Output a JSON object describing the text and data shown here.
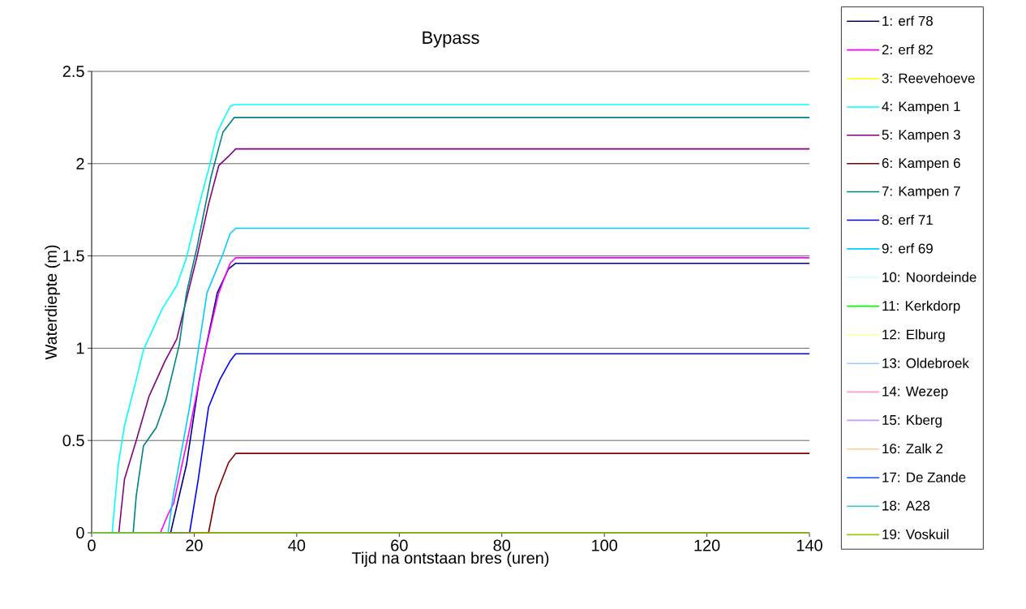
{
  "chart_data": {
    "type": "line",
    "title": "Bypass",
    "xlabel": "Tijd na ontstaan bres (uren)",
    "ylabel": "Waterdiepte (m)",
    "xlim": [
      0,
      140
    ],
    "ylim": [
      0,
      2.5
    ],
    "xticks": [
      0,
      20,
      40,
      60,
      80,
      100,
      120,
      140
    ],
    "yticks": [
      0,
      0.5,
      1,
      1.5,
      2,
      2.5
    ],
    "grid": "y",
    "legend": "right",
    "marker": "none",
    "line_style": "solid",
    "series": [
      {
        "name": "1: erf 78",
        "color": "#000080",
        "x": [
          0,
          15.4,
          18.5,
          21,
          24.5,
          26.7,
          28.1,
          140
        ],
        "values": [
          0,
          0,
          0.37,
          0.83,
          1.3,
          1.43,
          1.46,
          1.46
        ]
      },
      {
        "name": "2: erf 82",
        "color": "#ff00ff",
        "x": [
          0,
          13.4,
          14.9,
          16,
          18.8,
          22.2,
          24.8,
          27,
          28.1,
          140
        ],
        "values": [
          0,
          0,
          0.1,
          0.16,
          0.52,
          0.99,
          1.3,
          1.46,
          1.49,
          1.49
        ]
      },
      {
        "name": "3: Reevehoeve",
        "color": "#ffff00"
      },
      {
        "name": "4: Kampen 1",
        "color": "#00ffff",
        "x": [
          0,
          4,
          5.2,
          6.4,
          8.7,
          10.1,
          13.7,
          16.6,
          18.5,
          21,
          23.1,
          24.5,
          27,
          27.8,
          140
        ],
        "values": [
          0,
          0,
          0.37,
          0.58,
          0.83,
          0.99,
          1.21,
          1.34,
          1.49,
          1.78,
          2,
          2.17,
          2.31,
          2.32,
          2.32
        ]
      },
      {
        "name": "5: Kampen 3",
        "color": "#800080",
        "x": [
          0,
          5.3,
          6.4,
          8.7,
          11.2,
          14.3,
          16.6,
          18.8,
          20.5,
          22.8,
          24.8,
          26.7,
          28.1,
          140
        ],
        "values": [
          0,
          0,
          0.29,
          0.5,
          0.74,
          0.93,
          1.05,
          1.3,
          1.49,
          1.78,
          1.99,
          2.04,
          2.08,
          2.08
        ]
      },
      {
        "name": "6: Kampen 6",
        "color": "#800000",
        "x": [
          0,
          22.8,
          24.2,
          26.7,
          28.1,
          140
        ],
        "values": [
          0,
          0,
          0.2,
          0.38,
          0.43,
          0.43
        ]
      },
      {
        "name": "7: Kampen 7",
        "color": "#008080",
        "x": [
          0,
          8.1,
          8.7,
          10.1,
          12.6,
          14.5,
          17.1,
          18.5,
          20.5,
          23.3,
          25.6,
          27.8,
          140
        ],
        "values": [
          0,
          0,
          0.2,
          0.47,
          0.57,
          0.72,
          1.02,
          1.3,
          1.54,
          1.93,
          2.17,
          2.25,
          2.25
        ]
      },
      {
        "name": "8: erf 71",
        "color": "#0000ff",
        "x": [
          0,
          19.1,
          20.8,
          22.8,
          25,
          27,
          28.1,
          140
        ],
        "values": [
          0,
          0,
          0.29,
          0.68,
          0.83,
          0.93,
          0.97,
          0.97
        ]
      },
      {
        "name": "9: erf 69",
        "color": "#00ccff",
        "x": [
          0,
          14.9,
          15.9,
          19.1,
          20.8,
          22.5,
          25.6,
          27,
          28.1,
          140
        ],
        "values": [
          0,
          0,
          0.2,
          0.68,
          0.99,
          1.3,
          1.51,
          1.62,
          1.65,
          1.65
        ]
      },
      {
        "name": "10: Noordeinde",
        "color": "#ccffff"
      },
      {
        "name": "11: Kerkdorp",
        "color": "#00ff00"
      },
      {
        "name": "12: Elburg",
        "color": "#ffff99"
      },
      {
        "name": "13: Oldebroek",
        "color": "#99ccff"
      },
      {
        "name": "14: Wezep",
        "color": "#ff99cc"
      },
      {
        "name": "15: Kberg",
        "color": "#cc99ff"
      },
      {
        "name": "16: Zalk 2",
        "color": "#ffcc99"
      },
      {
        "name": "17: De Zande",
        "color": "#3366ff"
      },
      {
        "name": "18: A28",
        "color": "#33cccc"
      },
      {
        "name": "19: Voskuil",
        "color": "#99cc00",
        "x": [
          0,
          140
        ],
        "values": [
          0,
          0
        ]
      }
    ]
  }
}
